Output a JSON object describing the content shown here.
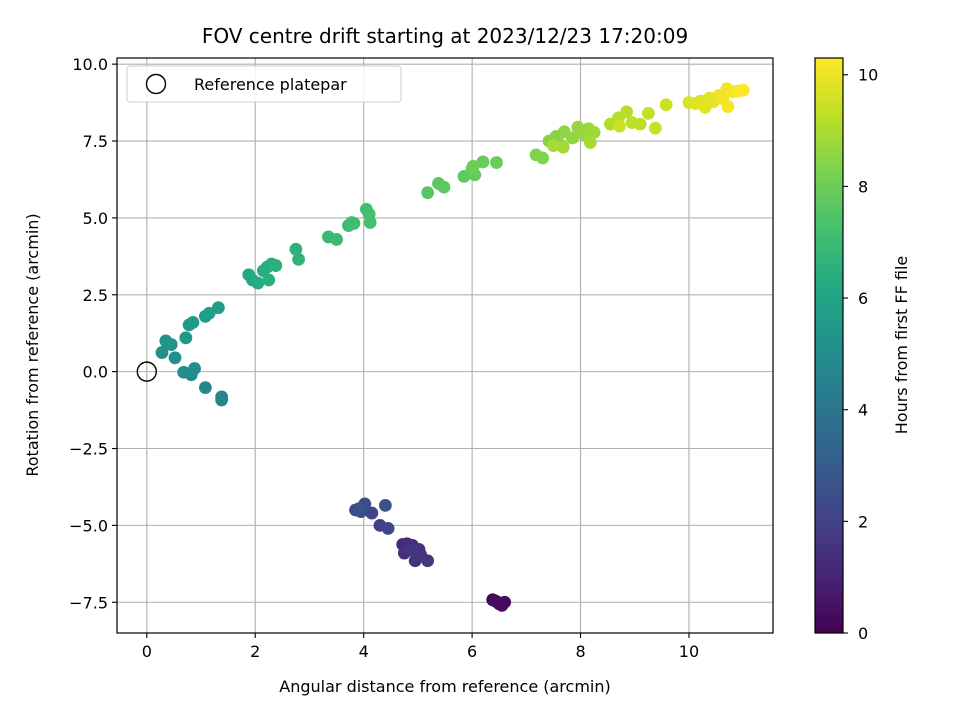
{
  "chart_data": {
    "type": "scatter",
    "title": "FOV centre drift starting at 2023/12/23 17:20:09",
    "xlabel": "Angular distance from reference (arcmin)",
    "ylabel": "Rotation from reference (arcmin)",
    "xlim": [
      -0.55,
      11.55
    ],
    "ylim": [
      -8.5,
      10.2
    ],
    "xticks": [
      0,
      2,
      4,
      6,
      8,
      10
    ],
    "yticks": [
      -7.5,
      -5.0,
      -2.5,
      0.0,
      2.5,
      5.0,
      7.5,
      10.0
    ],
    "xtick_labels": [
      "0",
      "2",
      "4",
      "6",
      "8",
      "10"
    ],
    "ytick_labels": [
      "−7.5",
      "−5.0",
      "−2.5",
      "0.0",
      "2.5",
      "5.0",
      "7.5",
      "10.0"
    ],
    "grid": true,
    "legend": {
      "position": "top-left",
      "entries": [
        "Reference platepar"
      ]
    },
    "reference_point": {
      "name": "Reference platepar",
      "x": 0,
      "y": 0
    },
    "colorbar": {
      "label": "Hours from first FF file",
      "colormap": "viridis",
      "range": [
        0,
        10.3
      ],
      "ticks": [
        0,
        2,
        4,
        6,
        8,
        10
      ],
      "tick_labels": [
        "0",
        "2",
        "4",
        "6",
        "8",
        "10"
      ]
    },
    "series": [
      {
        "points": [
          {
            "x": 6.38,
            "y": -7.42,
            "c": 0.1
          },
          {
            "x": 6.45,
            "y": -7.48,
            "c": 0.15
          },
          {
            "x": 6.5,
            "y": -7.55,
            "c": 0.2
          },
          {
            "x": 6.55,
            "y": -7.6,
            "c": 0.25
          },
          {
            "x": 6.6,
            "y": -7.5,
            "c": 0.3
          },
          {
            "x": 6.42,
            "y": -7.45,
            "c": 0.35
          },
          {
            "x": 4.72,
            "y": -5.62,
            "c": 1.2
          },
          {
            "x": 4.8,
            "y": -5.6,
            "c": 1.3
          },
          {
            "x": 4.9,
            "y": -5.65,
            "c": 1.35
          },
          {
            "x": 4.75,
            "y": -5.9,
            "c": 1.4
          },
          {
            "x": 4.95,
            "y": -6.15,
            "c": 1.45
          },
          {
            "x": 5.02,
            "y": -5.78,
            "c": 1.5
          },
          {
            "x": 5.05,
            "y": -5.95,
            "c": 1.55
          },
          {
            "x": 5.18,
            "y": -6.15,
            "c": 1.6
          },
          {
            "x": 4.88,
            "y": -5.8,
            "c": 1.65
          },
          {
            "x": 4.3,
            "y": -5.0,
            "c": 2.0
          },
          {
            "x": 4.45,
            "y": -5.1,
            "c": 2.05
          },
          {
            "x": 4.15,
            "y": -4.6,
            "c": 2.1
          },
          {
            "x": 3.95,
            "y": -4.55,
            "c": 2.2
          },
          {
            "x": 3.85,
            "y": -4.5,
            "c": 2.3
          },
          {
            "x": 4.02,
            "y": -4.3,
            "c": 2.4
          },
          {
            "x": 4.4,
            "y": -4.35,
            "c": 2.5
          },
          {
            "x": 3.92,
            "y": -4.45,
            "c": 2.55
          },
          {
            "x": 1.38,
            "y": -0.82,
            "c": 4.7
          },
          {
            "x": 1.38,
            "y": -0.92,
            "c": 4.75
          },
          {
            "x": 1.08,
            "y": -0.52,
            "c": 4.8
          },
          {
            "x": 0.82,
            "y": -0.1,
            "c": 4.9
          },
          {
            "x": 0.88,
            "y": 0.1,
            "c": 5.0
          },
          {
            "x": 0.68,
            "y": -0.02,
            "c": 5.05
          },
          {
            "x": 0.52,
            "y": 0.45,
            "c": 5.1
          },
          {
            "x": 0.28,
            "y": 0.62,
            "c": 5.15
          },
          {
            "x": 0.38,
            "y": 0.92,
            "c": 5.2
          },
          {
            "x": 0.45,
            "y": 0.88,
            "c": 5.25
          },
          {
            "x": 0.35,
            "y": 1.0,
            "c": 5.3
          },
          {
            "x": 0.72,
            "y": 1.1,
            "c": 5.5
          },
          {
            "x": 0.78,
            "y": 1.52,
            "c": 5.55
          },
          {
            "x": 0.85,
            "y": 1.6,
            "c": 5.6
          },
          {
            "x": 1.08,
            "y": 1.8,
            "c": 5.65
          },
          {
            "x": 1.15,
            "y": 1.9,
            "c": 5.7
          },
          {
            "x": 1.32,
            "y": 2.08,
            "c": 5.75
          },
          {
            "x": 1.88,
            "y": 3.15,
            "c": 6.2
          },
          {
            "x": 1.95,
            "y": 2.98,
            "c": 6.25
          },
          {
            "x": 2.05,
            "y": 2.88,
            "c": 6.3
          },
          {
            "x": 2.15,
            "y": 3.28,
            "c": 6.35
          },
          {
            "x": 2.22,
            "y": 3.4,
            "c": 6.4
          },
          {
            "x": 2.3,
            "y": 3.5,
            "c": 6.45
          },
          {
            "x": 2.38,
            "y": 3.45,
            "c": 6.5
          },
          {
            "x": 2.25,
            "y": 2.98,
            "c": 6.55
          },
          {
            "x": 2.75,
            "y": 3.98,
            "c": 6.6
          },
          {
            "x": 2.8,
            "y": 3.65,
            "c": 6.65
          },
          {
            "x": 3.35,
            "y": 4.38,
            "c": 6.9
          },
          {
            "x": 3.5,
            "y": 4.3,
            "c": 6.95
          },
          {
            "x": 3.72,
            "y": 4.75,
            "c": 7.0
          },
          {
            "x": 3.82,
            "y": 4.82,
            "c": 7.05
          },
          {
            "x": 3.78,
            "y": 4.85,
            "c": 7.1
          },
          {
            "x": 4.05,
            "y": 5.28,
            "c": 7.15
          },
          {
            "x": 4.1,
            "y": 5.12,
            "c": 7.2
          },
          {
            "x": 4.12,
            "y": 4.85,
            "c": 7.25
          },
          {
            "x": 5.18,
            "y": 5.82,
            "c": 7.6
          },
          {
            "x": 5.38,
            "y": 6.12,
            "c": 7.65
          },
          {
            "x": 5.48,
            "y": 6.0,
            "c": 7.7
          },
          {
            "x": 5.85,
            "y": 6.35,
            "c": 7.75
          },
          {
            "x": 6.0,
            "y": 6.6,
            "c": 7.8
          },
          {
            "x": 6.05,
            "y": 6.4,
            "c": 7.85
          },
          {
            "x": 6.2,
            "y": 6.82,
            "c": 7.9
          },
          {
            "x": 6.45,
            "y": 6.8,
            "c": 7.95
          },
          {
            "x": 6.02,
            "y": 6.68,
            "c": 8.0
          },
          {
            "x": 7.18,
            "y": 7.05,
            "c": 8.3
          },
          {
            "x": 7.3,
            "y": 6.95,
            "c": 8.35
          },
          {
            "x": 7.42,
            "y": 7.5,
            "c": 8.4
          },
          {
            "x": 7.55,
            "y": 7.65,
            "c": 8.45
          },
          {
            "x": 7.62,
            "y": 7.4,
            "c": 8.5
          },
          {
            "x": 7.7,
            "y": 7.8,
            "c": 8.55
          },
          {
            "x": 7.85,
            "y": 7.6,
            "c": 8.6
          },
          {
            "x": 7.95,
            "y": 7.95,
            "c": 8.65
          },
          {
            "x": 8.05,
            "y": 7.72,
            "c": 8.7
          },
          {
            "x": 8.15,
            "y": 7.9,
            "c": 8.75
          },
          {
            "x": 8.25,
            "y": 7.78,
            "c": 8.8
          },
          {
            "x": 7.68,
            "y": 7.3,
            "c": 8.85
          },
          {
            "x": 8.18,
            "y": 7.45,
            "c": 8.9
          },
          {
            "x": 7.5,
            "y": 7.35,
            "c": 8.95
          },
          {
            "x": 8.55,
            "y": 8.05,
            "c": 9.1
          },
          {
            "x": 8.7,
            "y": 8.25,
            "c": 9.15
          },
          {
            "x": 8.85,
            "y": 8.45,
            "c": 9.2
          },
          {
            "x": 8.95,
            "y": 8.1,
            "c": 9.25
          },
          {
            "x": 9.1,
            "y": 8.05,
            "c": 9.3
          },
          {
            "x": 9.25,
            "y": 8.4,
            "c": 9.35
          },
          {
            "x": 9.38,
            "y": 7.92,
            "c": 9.4
          },
          {
            "x": 9.58,
            "y": 8.68,
            "c": 9.45
          },
          {
            "x": 8.72,
            "y": 7.98,
            "c": 9.5
          },
          {
            "x": 10.0,
            "y": 8.75,
            "c": 9.7
          },
          {
            "x": 10.12,
            "y": 8.72,
            "c": 9.75
          },
          {
            "x": 10.22,
            "y": 8.8,
            "c": 9.8
          },
          {
            "x": 10.3,
            "y": 8.6,
            "c": 9.85
          },
          {
            "x": 10.38,
            "y": 8.9,
            "c": 9.9
          },
          {
            "x": 10.45,
            "y": 8.78,
            "c": 9.95
          },
          {
            "x": 10.55,
            "y": 8.98,
            "c": 10.0
          },
          {
            "x": 10.62,
            "y": 8.88,
            "c": 10.05
          },
          {
            "x": 10.7,
            "y": 9.2,
            "c": 10.1
          },
          {
            "x": 10.72,
            "y": 8.62,
            "c": 10.15
          },
          {
            "x": 10.8,
            "y": 9.1,
            "c": 10.2
          },
          {
            "x": 10.9,
            "y": 9.12,
            "c": 10.25
          },
          {
            "x": 11.0,
            "y": 9.15,
            "c": 10.3
          }
        ]
      }
    ]
  }
}
